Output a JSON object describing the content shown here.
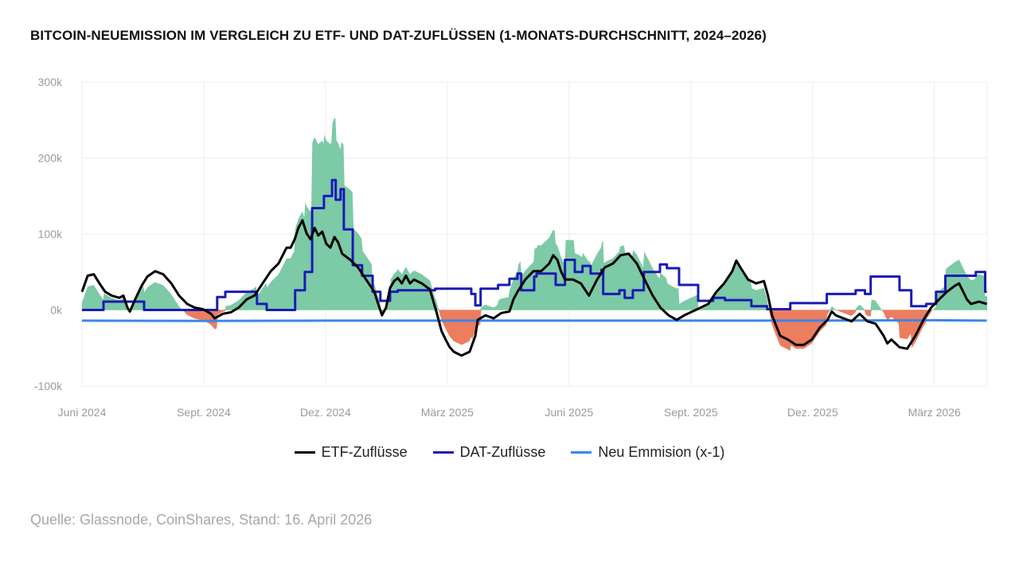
{
  "chart_data": {
    "type": "line",
    "title": "BITCOIN-NEUEMISSION IM VERGLEICH ZU ETF- UND DAT-ZUFLÜSSEN (1-MONATS-DURCHSCHNITT, 2024–2026)",
    "xlabel": "",
    "ylabel": "",
    "x_unit": "months since June 2024",
    "xlim": [
      0,
      22.3
    ],
    "ylim": [
      -100,
      300
    ],
    "y_unit": "k BTC",
    "y_ticks": [
      {
        "value": 300,
        "label": "300k"
      },
      {
        "value": 200,
        "label": "200k"
      },
      {
        "value": 100,
        "label": "100k"
      },
      {
        "value": 0,
        "label": "0k"
      },
      {
        "value": -100,
        "label": "-100k"
      }
    ],
    "x_ticks": [
      {
        "value": 0,
        "label": "Juni 2024"
      },
      {
        "value": 3,
        "label": "Sept. 2024"
      },
      {
        "value": 6,
        "label": "Dez. 2024"
      },
      {
        "value": 9,
        "label": "März 2025"
      },
      {
        "value": 12,
        "label": "Juni 2025"
      },
      {
        "value": 15,
        "label": "Sept. 2025"
      },
      {
        "value": 18,
        "label": "Dez. 2025"
      },
      {
        "value": 21,
        "label": "März 2026"
      }
    ],
    "grid": true,
    "legend_position": "bottom-center",
    "series": [
      {
        "name": "ETF-Zuflüsse",
        "color": "#000000",
        "style": "line",
        "points": [
          [
            0,
            24
          ],
          [
            0.14,
            45
          ],
          [
            0.29,
            47
          ],
          [
            0.43,
            35
          ],
          [
            0.57,
            24
          ],
          [
            0.73,
            19
          ],
          [
            0.92,
            16
          ],
          [
            1.02,
            19
          ],
          [
            1.12,
            3
          ],
          [
            1.18,
            -2
          ],
          [
            1.31,
            14
          ],
          [
            1.47,
            32
          ],
          [
            1.61,
            44
          ],
          [
            1.8,
            51
          ],
          [
            2,
            47
          ],
          [
            2.2,
            35
          ],
          [
            2.39,
            19
          ],
          [
            2.59,
            8
          ],
          [
            2.78,
            3
          ],
          [
            2.98,
            1
          ],
          [
            3.18,
            -5
          ],
          [
            3.27,
            -11
          ],
          [
            3.47,
            -5
          ],
          [
            3.67,
            -3
          ],
          [
            3.86,
            3
          ],
          [
            4.06,
            14
          ],
          [
            4.25,
            19
          ],
          [
            4.45,
            35
          ],
          [
            4.65,
            51
          ],
          [
            4.84,
            61
          ],
          [
            5.04,
            82
          ],
          [
            5.14,
            82
          ],
          [
            5.24,
            93
          ],
          [
            5.33,
            108
          ],
          [
            5.43,
            118
          ],
          [
            5.53,
            101
          ],
          [
            5.63,
            93
          ],
          [
            5.73,
            108
          ],
          [
            5.82,
            98
          ],
          [
            5.92,
            103
          ],
          [
            6.02,
            87
          ],
          [
            6.12,
            82
          ],
          [
            6.22,
            96
          ],
          [
            6.31,
            89
          ],
          [
            6.41,
            74
          ],
          [
            6.61,
            66
          ],
          [
            6.8,
            56
          ],
          [
            7,
            40
          ],
          [
            7.2,
            24
          ],
          [
            7.39,
            -7
          ],
          [
            7.49,
            3
          ],
          [
            7.59,
            29
          ],
          [
            7.69,
            38
          ],
          [
            7.78,
            42
          ],
          [
            7.88,
            35
          ],
          [
            7.98,
            45
          ],
          [
            8.08,
            35
          ],
          [
            8.18,
            40
          ],
          [
            8.37,
            35
          ],
          [
            8.57,
            27
          ],
          [
            8.73,
            -2
          ],
          [
            8.86,
            -28
          ],
          [
            8.96,
            -39
          ],
          [
            9.06,
            -49
          ],
          [
            9.16,
            -55
          ],
          [
            9.35,
            -60
          ],
          [
            9.55,
            -55
          ],
          [
            9.69,
            -34
          ],
          [
            9.75,
            -13
          ],
          [
            9.94,
            -7
          ],
          [
            10.14,
            -11
          ],
          [
            10.33,
            -4
          ],
          [
            10.53,
            -2
          ],
          [
            10.63,
            14
          ],
          [
            10.73,
            24
          ],
          [
            10.92,
            40
          ],
          [
            11.12,
            51
          ],
          [
            11.31,
            51
          ],
          [
            11.51,
            61
          ],
          [
            11.61,
            72
          ],
          [
            11.71,
            66
          ],
          [
            11.8,
            51
          ],
          [
            11.9,
            40
          ],
          [
            12.1,
            40
          ],
          [
            12.29,
            35
          ],
          [
            12.49,
            19
          ],
          [
            12.69,
            40
          ],
          [
            12.88,
            56
          ],
          [
            13.08,
            61
          ],
          [
            13.27,
            72
          ],
          [
            13.47,
            74
          ],
          [
            13.67,
            61
          ],
          [
            13.86,
            40
          ],
          [
            14.06,
            19
          ],
          [
            14.25,
            3
          ],
          [
            14.45,
            -7
          ],
          [
            14.65,
            -13
          ],
          [
            14.84,
            -7
          ],
          [
            15.04,
            -2
          ],
          [
            15.24,
            3
          ],
          [
            15.43,
            8
          ],
          [
            15.63,
            24
          ],
          [
            15.82,
            35
          ],
          [
            16.02,
            51
          ],
          [
            16.12,
            65
          ],
          [
            16.22,
            56
          ],
          [
            16.41,
            40
          ],
          [
            16.61,
            35
          ],
          [
            16.8,
            38
          ],
          [
            16.9,
            19
          ],
          [
            17,
            -7
          ],
          [
            17.2,
            -34
          ],
          [
            17.39,
            -39
          ],
          [
            17.59,
            -46
          ],
          [
            17.78,
            -46
          ],
          [
            17.98,
            -39
          ],
          [
            18.18,
            -23
          ],
          [
            18.37,
            -13
          ],
          [
            18.47,
            -2
          ],
          [
            18.57,
            -7
          ],
          [
            18.76,
            -11
          ],
          [
            18.96,
            -15
          ],
          [
            19.16,
            -5
          ],
          [
            19.35,
            -15
          ],
          [
            19.55,
            -18
          ],
          [
            19.75,
            -34
          ],
          [
            19.84,
            -44
          ],
          [
            19.94,
            -39
          ],
          [
            20.14,
            -49
          ],
          [
            20.33,
            -51
          ],
          [
            20.53,
            -34
          ],
          [
            20.73,
            -13
          ],
          [
            20.92,
            3
          ],
          [
            21.12,
            14
          ],
          [
            21.31,
            24
          ],
          [
            21.51,
            32
          ],
          [
            21.61,
            35
          ],
          [
            21.71,
            24
          ],
          [
            21.8,
            14
          ],
          [
            21.9,
            8
          ],
          [
            22.1,
            11
          ],
          [
            22.29,
            8
          ]
        ]
      },
      {
        "name": "DAT-Zuflüsse",
        "color": "#1a1ab5",
        "style": "step",
        "points": [
          [
            0,
            0
          ],
          [
            0.53,
            11
          ],
          [
            1.53,
            0
          ],
          [
            3.33,
            17
          ],
          [
            3.53,
            24
          ],
          [
            4.31,
            8
          ],
          [
            4.55,
            0
          ],
          [
            5.25,
            26
          ],
          [
            5.49,
            50
          ],
          [
            5.67,
            134
          ],
          [
            5.96,
            150
          ],
          [
            6.16,
            171
          ],
          [
            6.25,
            145
          ],
          [
            6.37,
            159
          ],
          [
            6.45,
            106
          ],
          [
            6.67,
            59
          ],
          [
            6.9,
            45
          ],
          [
            7.16,
            24
          ],
          [
            7.35,
            12
          ],
          [
            7.59,
            24
          ],
          [
            7.78,
            26
          ],
          [
            8.7,
            28
          ],
          [
            9.59,
            21
          ],
          [
            9.69,
            6
          ],
          [
            9.82,
            28
          ],
          [
            10.25,
            33
          ],
          [
            10.53,
            41
          ],
          [
            10.73,
            48
          ],
          [
            10.82,
            26
          ],
          [
            11.14,
            44
          ],
          [
            11.2,
            48
          ],
          [
            11.67,
            33
          ],
          [
            11.9,
            66
          ],
          [
            12.14,
            50
          ],
          [
            12.33,
            58
          ],
          [
            12.53,
            48
          ],
          [
            12.8,
            53
          ],
          [
            12.84,
            21
          ],
          [
            13.24,
            26
          ],
          [
            13.37,
            16
          ],
          [
            13.57,
            26
          ],
          [
            13.84,
            50
          ],
          [
            14.24,
            60
          ],
          [
            14.41,
            55
          ],
          [
            14.71,
            33
          ],
          [
            15.18,
            12
          ],
          [
            15.55,
            16
          ],
          [
            15.84,
            13
          ],
          [
            16.49,
            5
          ],
          [
            16.88,
            1
          ],
          [
            17.45,
            9
          ],
          [
            18.35,
            21
          ],
          [
            19.06,
            26
          ],
          [
            19.29,
            21
          ],
          [
            19.43,
            44
          ],
          [
            20.14,
            26
          ],
          [
            20.43,
            5
          ],
          [
            20.8,
            8
          ],
          [
            21.04,
            24
          ],
          [
            21.27,
            45
          ],
          [
            22.02,
            50
          ],
          [
            22.25,
            24
          ],
          [
            22.29,
            24
          ]
        ]
      },
      {
        "name": "Neu Emmision (x-1)",
        "color": "#3d86e8",
        "style": "line",
        "points": [
          [
            0,
            -14
          ],
          [
            3,
            -14.5
          ],
          [
            6,
            -14
          ],
          [
            9,
            -14
          ],
          [
            12,
            -14
          ],
          [
            15,
            -14
          ],
          [
            18,
            -14
          ],
          [
            21,
            -13.5
          ],
          [
            22.29,
            -14
          ]
        ]
      }
    ],
    "net_area": {
      "description": "ETF + DAT + Neu Emmision",
      "positive_color": "#7ccaa6",
      "negative_color": "#ec7d5e"
    }
  },
  "source": "Quelle: Glassnode, CoinShares, Stand: 16. April 2026"
}
